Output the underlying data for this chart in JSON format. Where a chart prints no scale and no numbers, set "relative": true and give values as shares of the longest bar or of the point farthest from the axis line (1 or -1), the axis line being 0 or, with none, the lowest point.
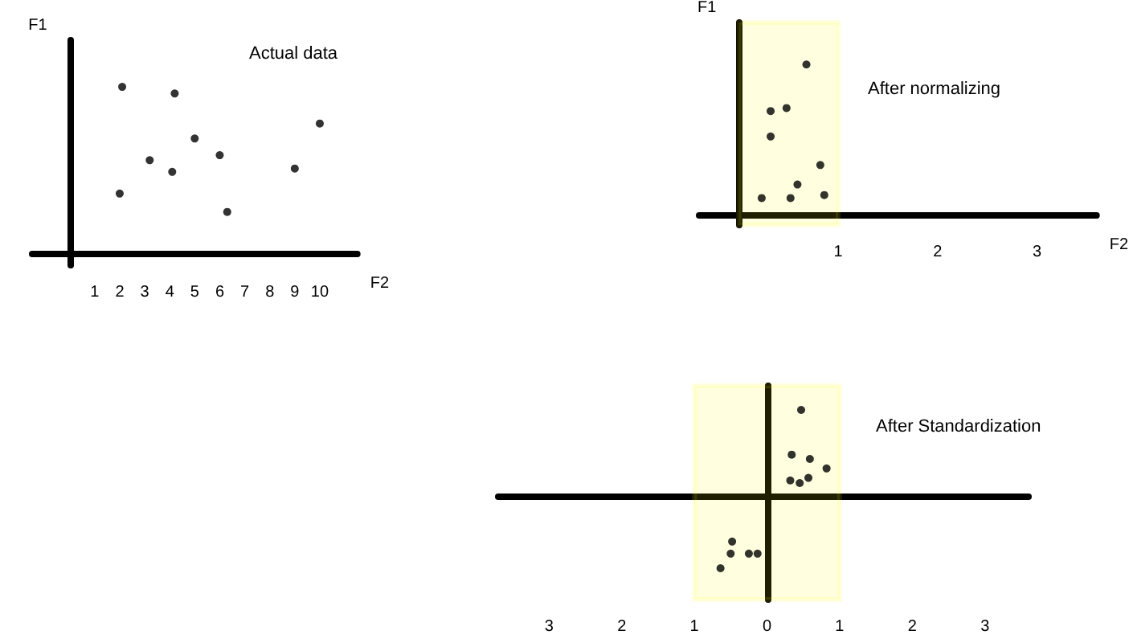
{
  "chart_data": [
    {
      "type": "scatter",
      "title": "Actual data",
      "xlabel": "F2",
      "ylabel": "F1",
      "relative": true,
      "marker": "circle",
      "x": [
        2.1,
        4.2,
        5,
        3.2,
        6,
        4.1,
        2,
        6.3,
        9,
        10
      ],
      "series": [
        {
          "color": "#000000",
          "values": [
            1,
            0.96,
            0.69,
            0.56,
            0.59,
            0.49,
            0.36,
            0.25,
            0.51,
            0.78
          ]
        }
      ],
      "xlim": [
        -1.5,
        11.5
      ],
      "xticks": [
        1,
        2,
        3,
        4,
        5,
        6,
        7,
        8,
        9,
        10
      ]
    },
    {
      "type": "scatter",
      "title": "After normalizing",
      "xlabel": "F2",
      "ylabel": "F1",
      "relative": true,
      "marker": "circle",
      "x": [
        0.23,
        0.52,
        0.59,
        0.86,
        0.82,
        0.32,
        0.32,
        0.48,
        0.68
      ],
      "series": [
        {
          "color": "#000000",
          "values": [
            0.11,
            0.11,
            0.2,
            0.13,
            0.33,
            0.52,
            0.69,
            0.71,
            1
          ]
        }
      ],
      "xlim": [
        -0.4,
        3.6
      ],
      "xticks": [
        1,
        2,
        3
      ],
      "bands": [
        {
          "axis": "x",
          "from": 0,
          "to": 1,
          "color": "#ffff00"
        }
      ]
    },
    {
      "type": "scatter",
      "title": "After Standardization",
      "relative": true,
      "marker": "circle",
      "x": [
        0.47,
        0.34,
        0.59,
        0.82,
        0.32,
        0.45,
        0.57,
        -0.48,
        -0.5,
        -0.25,
        -0.13,
        -0.64
      ],
      "series": [
        {
          "color": "#000000",
          "values": [
            1,
            0.48,
            0.43,
            0.32,
            0.18,
            0.15,
            0.21,
            -0.53,
            -0.67,
            -0.67,
            -0.67,
            -0.84
          ]
        }
      ],
      "xlim": [
        -3.7,
        3.6
      ],
      "xticks": [
        {
          "value": -3,
          "label": "3"
        },
        {
          "value": -2,
          "label": "2"
        },
        {
          "value": -1,
          "label": "1"
        },
        0,
        1,
        2,
        3
      ],
      "bands": [
        {
          "axis": "x",
          "from": -1,
          "to": 1,
          "color": "#ffff00"
        }
      ]
    }
  ]
}
